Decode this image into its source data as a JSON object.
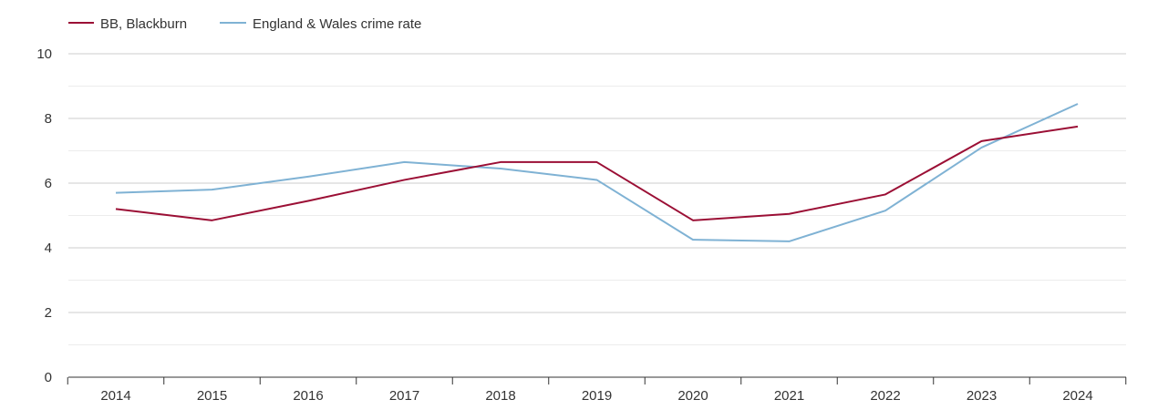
{
  "chart_data": {
    "type": "line",
    "title": "",
    "xlabel": "",
    "ylabel": "",
    "categories": [
      "2014",
      "2015",
      "2016",
      "2017",
      "2018",
      "2019",
      "2020",
      "2021",
      "2022",
      "2023",
      "2024"
    ],
    "y_ticks": [
      "0",
      "2",
      "4",
      "6",
      "8",
      "10"
    ],
    "ylim": [
      0,
      10
    ],
    "grid": true,
    "legend_position": "top-left",
    "series": [
      {
        "name": "BB, Blackburn",
        "color": "#9b0f35",
        "values": [
          5.2,
          4.85,
          5.45,
          6.1,
          6.65,
          6.65,
          4.85,
          5.05,
          5.65,
          7.3,
          7.75
        ]
      },
      {
        "name": "England & Wales crime rate",
        "color": "#7fb2d4",
        "values": [
          5.7,
          5.8,
          6.2,
          6.65,
          6.45,
          6.1,
          4.25,
          4.2,
          5.15,
          7.1,
          8.45
        ]
      }
    ]
  }
}
